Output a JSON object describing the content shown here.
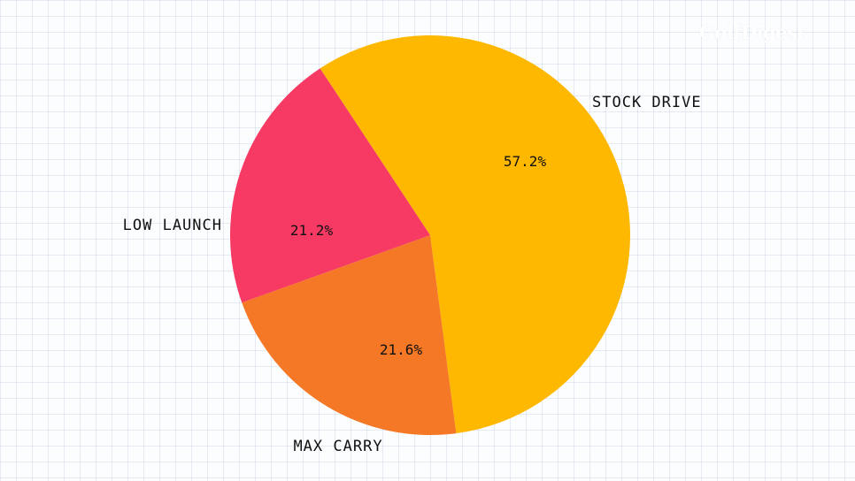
{
  "brand": {
    "logo_text": "GolfDigest"
  },
  "chart_data": {
    "type": "pie",
    "title": "",
    "slices": [
      {
        "label": "STOCK DRIVE",
        "value": 57.2,
        "value_label": "57.2%",
        "color": "#ffb800"
      },
      {
        "label": "MAX CARRY",
        "value": 21.6,
        "value_label": "21.6%",
        "color": "#f47825"
      },
      {
        "label": "LOW LAUNCH",
        "value": 21.2,
        "value_label": "21.2%",
        "color": "#f73a64"
      }
    ],
    "start_angle_deg": -33.4,
    "direction": "clockwise",
    "legend": "none"
  }
}
